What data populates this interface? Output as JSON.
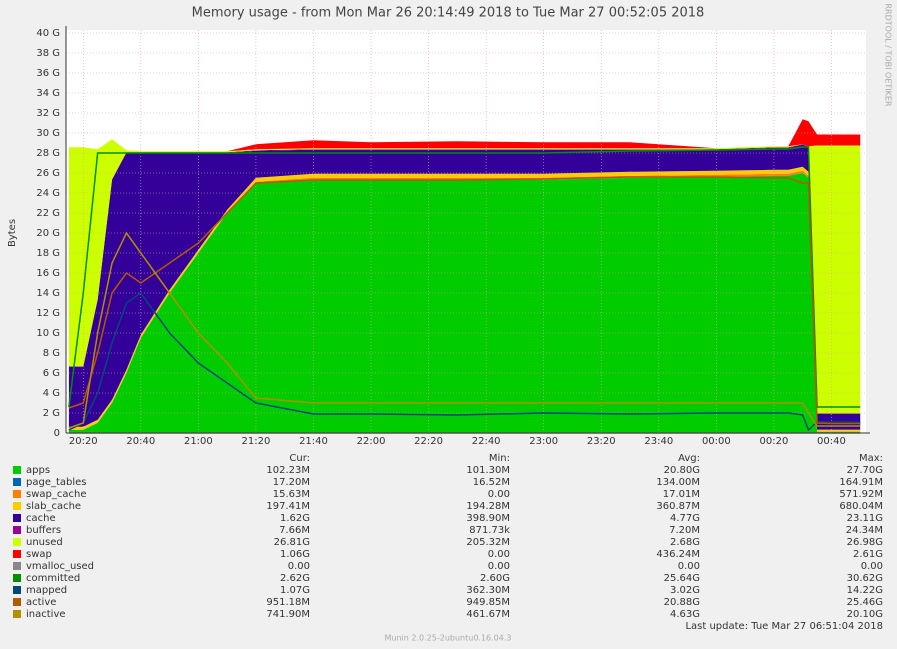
{
  "chart_data": {
    "type": "area",
    "title": "Memory usage - from Mon Mar 26 20:14:49 2018 to Tue Mar 27 00:52:05 2018",
    "ylabel": "Bytes",
    "side_text": "RRDTOOL / TOBI OETIKER",
    "footer": "Munin 2.0.25-2ubuntu0.16.04.3",
    "last_update": "Last update:  Tue Mar 27 06:51:04 2018",
    "legend_headers": [
      "Cur:",
      "Min:",
      "Avg:",
      "Max:"
    ],
    "grid": true,
    "x": [
      "20:15",
      "20:20",
      "20:25",
      "20:30",
      "20:35",
      "20:40",
      "20:50",
      "21:00",
      "21:10",
      "21:20",
      "21:40",
      "22:00",
      "22:30",
      "23:00",
      "23:30",
      "00:00",
      "00:20",
      "00:25",
      "00:30",
      "00:32",
      "00:35",
      "00:40",
      "00:50"
    ],
    "xlim": [
      "20:14",
      "00:52"
    ],
    "xticks": [
      "20:20",
      "20:40",
      "21:00",
      "21:20",
      "21:40",
      "22:00",
      "22:20",
      "22:40",
      "23:00",
      "23:20",
      "23:40",
      "00:00",
      "00:20",
      "00:40"
    ],
    "ylim": [
      0,
      40
    ],
    "yticks": [
      0,
      {
        "value": 2,
        "label": "2 G"
      },
      {
        "value": 4,
        "label": "4 G"
      },
      {
        "value": 6,
        "label": "6 G"
      },
      {
        "value": 8,
        "label": "8 G"
      },
      {
        "value": 10,
        "label": "10 G"
      },
      {
        "value": 12,
        "label": "12 G"
      },
      {
        "value": 14,
        "label": "14 G"
      },
      {
        "value": 16,
        "label": "16 G"
      },
      {
        "value": 18,
        "label": "18 G"
      },
      {
        "value": 20,
        "label": "20 G"
      },
      {
        "value": 22,
        "label": "22 G"
      },
      {
        "value": 24,
        "label": "24 G"
      },
      {
        "value": 26,
        "label": "26 G"
      },
      {
        "value": 28,
        "label": "28 G"
      },
      {
        "value": 30,
        "label": "30 G"
      },
      {
        "value": 32,
        "label": "32 G"
      },
      {
        "value": 34,
        "label": "34 G"
      },
      {
        "value": 36,
        "label": "36 G"
      },
      {
        "value": 38,
        "label": "38 G"
      },
      {
        "value": 40,
        "label": "40 G"
      }
    ],
    "series": [
      {
        "name": "apps",
        "color": "#00cc00",
        "draw": "area",
        "cur": "102.23M",
        "min": "101.30M",
        "avg": "20.80G",
        "max": "27.70G",
        "values": [
          0.3,
          0.3,
          1,
          3,
          6,
          9.5,
          14,
          18,
          22,
          25,
          25.3,
          25.3,
          25.3,
          25.3,
          25.5,
          25.6,
          25.7,
          25.7,
          26,
          25.5,
          0.1,
          0.1,
          0.1
        ]
      },
      {
        "name": "page_tables",
        "color": "#0066b3",
        "draw": "area",
        "cur": "17.20M",
        "min": "16.52M",
        "avg": "134.00M",
        "max": "164.91M",
        "values": [
          0.02,
          0.02,
          0.02,
          0.02,
          0.02,
          0.02,
          0.02,
          0.02,
          0.02,
          0.02,
          0.02,
          0.02,
          0.02,
          0.02,
          0.02,
          0.02,
          0.02,
          0.02,
          0.02,
          0.02,
          0.02,
          0.02,
          0.02
        ]
      },
      {
        "name": "swap_cache",
        "color": "#ff8000",
        "draw": "area",
        "cur": "15.63M",
        "min": "0.00",
        "avg": "17.01M",
        "max": "571.92M",
        "values": [
          0,
          0,
          0,
          0,
          0,
          0,
          0,
          0,
          0,
          0.1,
          0.2,
          0.2,
          0.2,
          0.2,
          0.2,
          0.2,
          0.2,
          0.2,
          0.2,
          0.2,
          0.02,
          0.02,
          0.02
        ]
      },
      {
        "name": "slab_cache",
        "color": "#ffcc00",
        "draw": "area",
        "cur": "197.41M",
        "min": "194.28M",
        "avg": "360.87M",
        "max": "680.04M",
        "values": [
          0.3,
          0.3,
          0.3,
          0.3,
          0.3,
          0.3,
          0.3,
          0.3,
          0.3,
          0.4,
          0.4,
          0.4,
          0.4,
          0.4,
          0.4,
          0.4,
          0.4,
          0.4,
          0.4,
          0.4,
          0.2,
          0.2,
          0.2
        ]
      },
      {
        "name": "cache",
        "color": "#330099",
        "draw": "area",
        "cur": "1.62G",
        "min": "398.90M",
        "avg": "4.77G",
        "max": "23.11G",
        "values": [
          6,
          6,
          12,
          22,
          21.7,
          18.2,
          13.7,
          9.7,
          5.7,
          2.7,
          2.4,
          2.4,
          2.4,
          2.4,
          2.2,
          2.1,
          2.2,
          2.2,
          2.2,
          2.5,
          1.6,
          1.6,
          1.6
        ]
      },
      {
        "name": "buffers",
        "color": "#990099",
        "draw": "area",
        "cur": "7.66M",
        "min": "871.73k",
        "avg": "7.20M",
        "max": "24.34M",
        "values": [
          0.05,
          0.05,
          0.05,
          0.05,
          0.05,
          0.05,
          0.05,
          0.05,
          0.05,
          0.05,
          0.05,
          0.05,
          0.05,
          0.05,
          0.05,
          0.05,
          0.05,
          0.05,
          0.05,
          0.05,
          0.01,
          0.01,
          0.01
        ]
      },
      {
        "name": "unused",
        "color": "#ccff00",
        "draw": "area",
        "cur": "26.81G",
        "min": "205.32M",
        "avg": "2.68G",
        "max": "26.98G",
        "values": [
          21.9,
          21.9,
          15,
          4,
          0.2,
          0.1,
          0.1,
          0.1,
          0.1,
          0.1,
          0.1,
          0.1,
          0.1,
          0.1,
          0.1,
          0.1,
          0.1,
          0.1,
          0,
          0,
          26.8,
          26.8,
          26.8
        ]
      },
      {
        "name": "swap",
        "color": "#ff0000",
        "draw": "area",
        "cur": "1.06G",
        "min": "0.00",
        "avg": "436.24M",
        "max": "2.61G",
        "values": [
          0,
          0,
          0,
          0,
          0,
          0,
          0,
          0,
          0,
          0.5,
          0.8,
          0.6,
          0.7,
          0.6,
          0.6,
          0,
          0,
          0,
          2.5,
          2.5,
          1.1,
          1.1,
          1.1
        ]
      },
      {
        "name": "vmalloc_used",
        "color": "#888888",
        "draw": "line",
        "cur": "0.00",
        "min": "0.00",
        "avg": "0.00",
        "max": "0.00",
        "values": [
          0,
          0,
          0,
          0,
          0,
          0,
          0,
          0,
          0,
          0,
          0,
          0,
          0,
          0,
          0,
          0,
          0,
          0,
          0,
          0,
          0,
          0,
          0
        ]
      },
      {
        "name": "committed",
        "color": "#008f00",
        "draw": "line",
        "cur": "2.62G",
        "min": "2.60G",
        "avg": "25.64G",
        "max": "30.62G",
        "values": [
          2.6,
          14,
          28,
          28,
          28,
          28,
          28,
          28,
          28,
          28,
          28,
          28,
          28,
          28,
          28.2,
          28.3,
          28.4,
          28.4,
          28.6,
          28.6,
          2.6,
          2.6,
          2.6
        ]
      },
      {
        "name": "mapped",
        "color": "#00487d",
        "draw": "line",
        "cur": "1.07G",
        "min": "362.30M",
        "avg": "3.02G",
        "max": "14.22G",
        "values": [
          0.3,
          1,
          4,
          9,
          13,
          14,
          10,
          7,
          5,
          3,
          1.9,
          1.9,
          1.8,
          2,
          1.9,
          2,
          2,
          2,
          1.8,
          0.3,
          1.1,
          1.1,
          1.1
        ]
      },
      {
        "name": "active",
        "color": "#b35a00",
        "draw": "line",
        "cur": "951.18M",
        "min": "949.85M",
        "avg": "20.88G",
        "max": "25.46G",
        "values": [
          2.5,
          3,
          8,
          14,
          16,
          15,
          17,
          19,
          22,
          25,
          25.3,
          25.3,
          25.3,
          25.4,
          25.6,
          25.6,
          25.5,
          25.5,
          25,
          25,
          1,
          0.95,
          0.95
        ]
      },
      {
        "name": "inactive",
        "color": "#b38f00",
        "draw": "line",
        "cur": "741.90M",
        "min": "461.67M",
        "avg": "4.63G",
        "max": "20.10G",
        "values": [
          0.5,
          1,
          10,
          17,
          20,
          18,
          14,
          10,
          7,
          3.5,
          3,
          3,
          3,
          3,
          3,
          3,
          3,
          3,
          3,
          2,
          0.7,
          0.7,
          0.7
        ]
      }
    ]
  }
}
